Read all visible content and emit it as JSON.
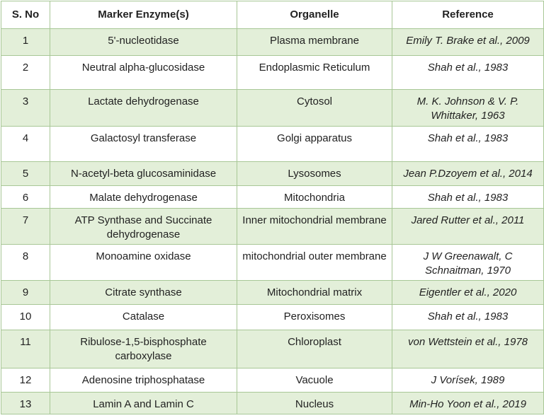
{
  "table": {
    "headers": [
      "S. No",
      "Marker Enzyme(s)",
      "Organelle",
      "Reference"
    ],
    "rows": [
      {
        "no": "1",
        "enzyme": "5'-nucleotidase",
        "organelle": "Plasma membrane",
        "reference": "Emily T. Brake et al., 2009"
      },
      {
        "no": "2",
        "enzyme": "Neutral alpha-glucosidase",
        "organelle": "Endoplasmic Reticulum",
        "reference": "Shah et al., 1983"
      },
      {
        "no": "3",
        "enzyme": "Lactate dehydrogenase",
        "organelle": "Cytosol",
        "reference": "M. K. Johnson & V. P. Whittaker, 1963"
      },
      {
        "no": "4",
        "enzyme": "Galactosyl transferase",
        "organelle": "Golgi apparatus",
        "reference": "Shah et al., 1983"
      },
      {
        "no": "5",
        "enzyme": "N-acetyl-beta glucosaminidase",
        "organelle": "Lysosomes",
        "reference": "Jean P.Dzoyem et al., 2014"
      },
      {
        "no": "6",
        "enzyme": "Malate dehydrogenase",
        "organelle": "Mitochondria",
        "reference": "Shah et al., 1983"
      },
      {
        "no": "7",
        "enzyme": "ATP Synthase and Succinate dehydrogenase",
        "organelle": "Inner mitochondrial membrane",
        "reference": "Jared Rutter et al., 2011"
      },
      {
        "no": "8",
        "enzyme": "Monoamine oxidase",
        "organelle": "mitochondrial outer membrane",
        "reference": "J W Greenawalt, C Schnaitman, 1970"
      },
      {
        "no": "9",
        "enzyme": "Citrate synthase",
        "organelle": "Mitochondrial matrix",
        "reference": "Eigentler et al., 2020"
      },
      {
        "no": "10",
        "enzyme": "Catalase",
        "organelle": "Peroxisomes",
        "reference": "Shah et al., 1983"
      },
      {
        "no": "11",
        "enzyme": "Ribulose-1,5-bisphosphate carboxylase",
        "organelle": "Chloroplast",
        "reference": "von Wettstein et al., 1978"
      },
      {
        "no": "12",
        "enzyme": "Adenosine triphosphatase",
        "organelle": "Vacuole",
        "reference": "J Vorísek, 1989"
      },
      {
        "no": "13",
        "enzyme": "Lamin A and Lamin C",
        "organelle": "Nucleus",
        "reference": "Min-Ho Yoon et al., 2019"
      }
    ]
  },
  "colors": {
    "band": "#e3efd9",
    "border": "#a8c796"
  }
}
